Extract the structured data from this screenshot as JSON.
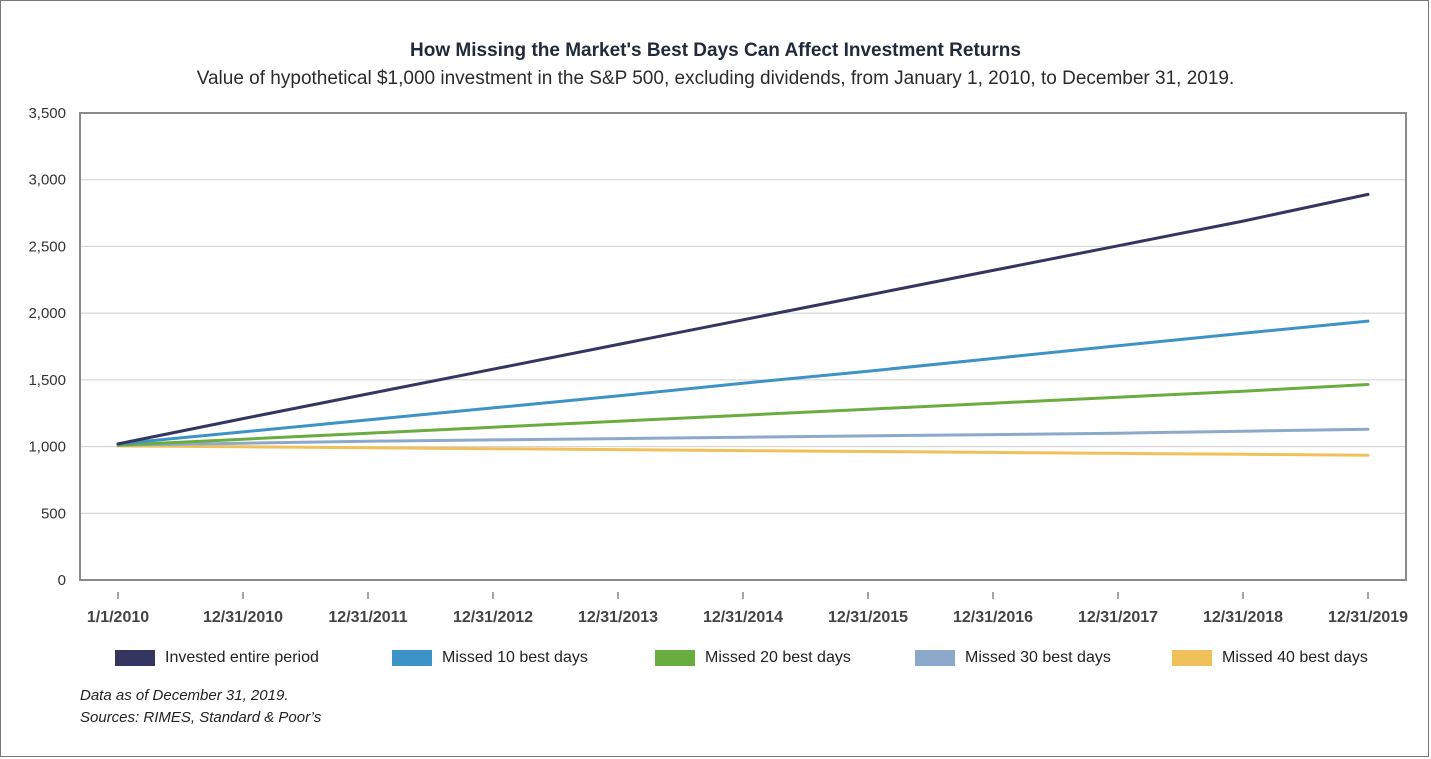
{
  "title": "How Missing the Market's Best Days Can Affect  Investment Returns",
  "subtitle": "Value of hypothetical $1,000 investment in the S&P 500, excluding dividends, from January 1, 2010, to December 31, 2019.",
  "footnote": {
    "line1": "Data as of December 31, 2019.",
    "line2": "Sources: RIMES, Standard & Poor’s"
  },
  "chart_data": {
    "type": "line",
    "title": "How Missing the Market's Best Days Can Affect  Investment Returns",
    "subtitle": "Value of hypothetical $1,000 investment in the S&P 500, excluding dividends, from January 1, 2010, to December 31, 2019.",
    "xlabel": "",
    "ylabel": "",
    "x": [
      "1/1/2010",
      "12/31/2010",
      "12/31/2011",
      "12/31/2012",
      "12/31/2013",
      "12/31/2014",
      "12/31/2015",
      "12/31/2016",
      "12/31/2017",
      "12/31/2018",
      "12/31/2019"
    ],
    "ylim": [
      0,
      3500
    ],
    "yticks": [
      0,
      500,
      1000,
      1500,
      2000,
      2500,
      3000,
      3500
    ],
    "ytick_labels": [
      "0",
      "500",
      "1,000",
      "1,500",
      "2,000",
      "2,500",
      "3,000",
      "3,500"
    ],
    "grid": "horizontal",
    "legend_position": "bottom",
    "series": [
      {
        "name": "Invested entire period",
        "color": "#34365f",
        "values": [
          1020,
          1210,
          1395,
          1580,
          1765,
          1950,
          2135,
          2320,
          2505,
          2690,
          2890
        ]
      },
      {
        "name": "Missed 10 best days",
        "color": "#3d93c6",
        "values": [
          1020,
          1110,
          1200,
          1290,
          1380,
          1475,
          1565,
          1660,
          1755,
          1850,
          1940
        ]
      },
      {
        "name": "Missed 20 best days",
        "color": "#6aad3f",
        "values": [
          1010,
          1055,
          1100,
          1145,
          1190,
          1235,
          1280,
          1325,
          1370,
          1415,
          1465
        ]
      },
      {
        "name": "Missed 30 best days",
        "color": "#8ca9cc",
        "values": [
          1010,
          1025,
          1040,
          1050,
          1060,
          1070,
          1080,
          1090,
          1100,
          1115,
          1130
        ]
      },
      {
        "name": "Missed 40 best days",
        "color": "#f0c15a",
        "values": [
          1005,
          998,
          991,
          984,
          977,
          970,
          963,
          956,
          949,
          942,
          935
        ]
      }
    ]
  }
}
